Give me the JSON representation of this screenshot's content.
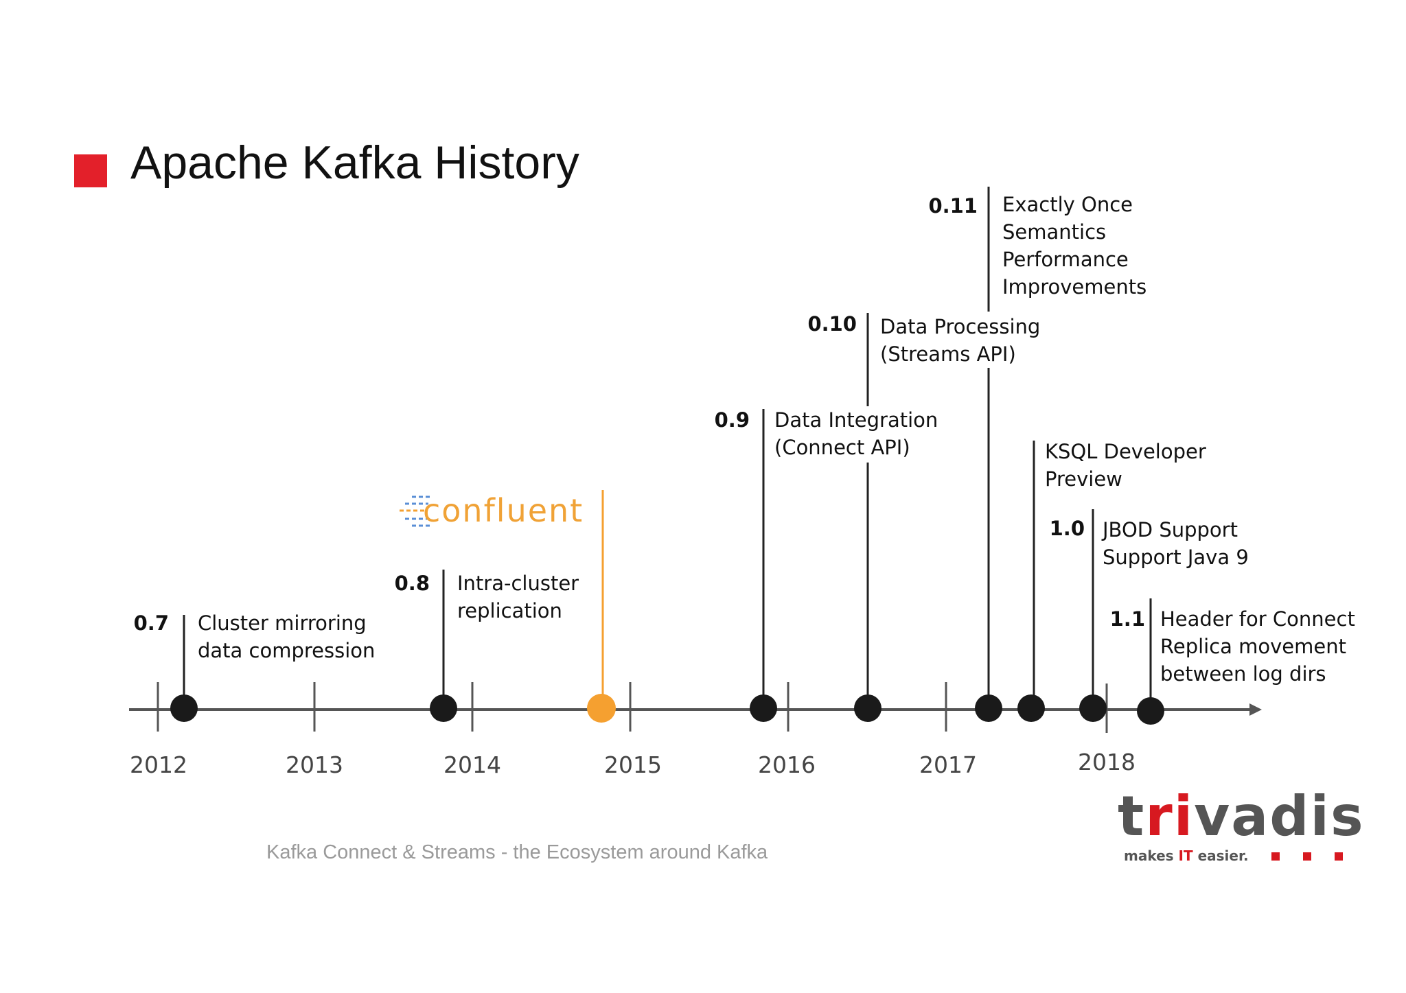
{
  "title": "Apache Kafka History",
  "footer": "Kafka Connect & Streams - the Ecosystem around Kafka",
  "brand": {
    "name_part1": "t",
    "name_part2": "ri",
    "name_part3": "vadis",
    "tagline_part1": "makes ",
    "tagline_part2": "IT",
    "tagline_part3": " easier.",
    "accent_color": "#d71920"
  },
  "confluent_logo_text": "confluent",
  "colors": {
    "title_marker": "#e3202a",
    "release_dot": "#1a1a1a",
    "confluent_marker": "#f5a030",
    "axis": "#555555"
  },
  "timeline": {
    "years": [
      "2012",
      "2013",
      "2014",
      "2015",
      "2016",
      "2017",
      "2018"
    ],
    "releases": [
      {
        "version": "0.7",
        "lines": [
          "Cluster mirroring",
          "data compression"
        ]
      },
      {
        "version": "0.8",
        "lines": [
          "Intra-cluster",
          "replication"
        ]
      },
      {
        "version": "0.9",
        "lines": [
          "Data Integration",
          "(Connect API)"
        ]
      },
      {
        "version": "0.10",
        "lines": [
          "Data Processing",
          "(Streams API)"
        ]
      },
      {
        "version": "0.11",
        "lines": [
          "Exactly Once",
          "Semantics",
          "Performance",
          "Improvements"
        ]
      },
      {
        "version": "",
        "lines": [
          "KSQL Developer",
          "Preview"
        ]
      },
      {
        "version": "1.0",
        "lines": [
          "JBOD Support",
          "Support Java 9"
        ]
      },
      {
        "version": "1.1",
        "lines": [
          "Header for Connect",
          "Replica movement",
          "between log dirs"
        ]
      }
    ]
  }
}
